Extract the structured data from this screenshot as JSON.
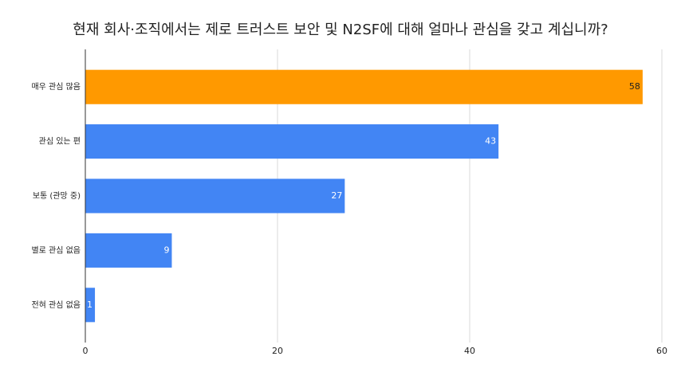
{
  "chart_data": {
    "type": "bar",
    "orientation": "horizontal",
    "title": "현재 회사·조직에서는 제로 트러스트 보안 및 N2SF에 대해 얼마나 관심을 갖고 계십니까?",
    "categories": [
      "매우 관심 많음",
      "관심 있는 편",
      "보통 (관망 중)",
      "별로 관심 없음",
      "전혀 관심 없음"
    ],
    "values": [
      58,
      43,
      27,
      9,
      1
    ],
    "colors": [
      "#ff9900",
      "#4285f4",
      "#4285f4",
      "#4285f4",
      "#4285f4"
    ],
    "xlim": [
      0,
      60
    ],
    "xticks": [
      0,
      20,
      40,
      60
    ],
    "grid": true
  }
}
